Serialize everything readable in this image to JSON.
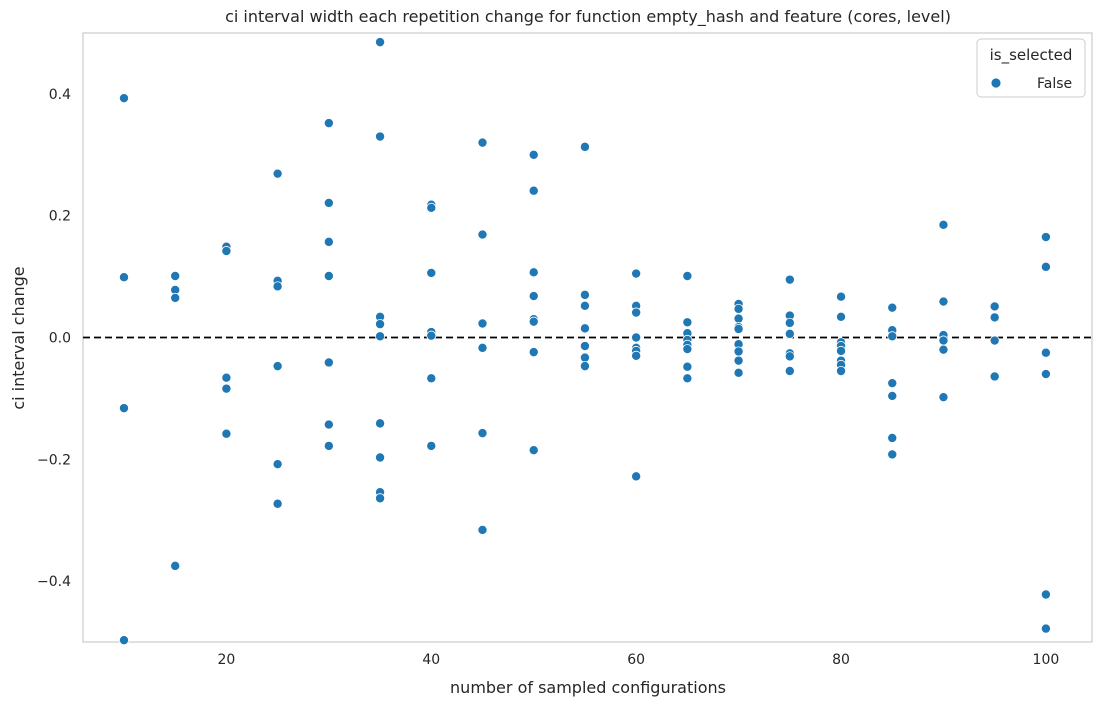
{
  "chart_data": {
    "type": "scatter",
    "title": "ci interval width each repetition change for function empty_hash and feature (cores, level)",
    "xlabel": "number of sampled configurations",
    "ylabel": "ci interval change",
    "xlim": [
      6,
      104.5
    ],
    "ylim": [
      -0.5,
      0.5
    ],
    "x_ticks": [
      20,
      40,
      60,
      80,
      100
    ],
    "y_ticks": [
      -0.4,
      -0.2,
      0.0,
      0.2,
      0.4
    ],
    "x_tick_labels": [
      "20",
      "40",
      "60",
      "80",
      "100"
    ],
    "y_tick_labels": [
      "−0.4",
      "−0.2",
      "0.0",
      "0.2",
      "0.4"
    ],
    "reference_line": {
      "y": 0.0,
      "style": "dashed",
      "color": "#000000"
    },
    "grid": false,
    "legend": {
      "title": "is_selected",
      "placement": "top-right",
      "entries": [
        "False"
      ]
    },
    "series": [
      {
        "name": "False",
        "color": "#1f77b4",
        "points": [
          [
            10,
            0.393
          ],
          [
            10,
            0.099
          ],
          [
            10,
            -0.116
          ],
          [
            10,
            -0.497
          ],
          [
            15,
            0.101
          ],
          [
            15,
            0.078
          ],
          [
            15,
            0.065
          ],
          [
            15,
            -0.375
          ],
          [
            20,
            0.149
          ],
          [
            20,
            0.142
          ],
          [
            20,
            -0.066
          ],
          [
            20,
            -0.084
          ],
          [
            20,
            -0.158
          ],
          [
            25,
            0.269
          ],
          [
            25,
            0.093
          ],
          [
            25,
            0.084
          ],
          [
            25,
            -0.047
          ],
          [
            25,
            -0.208
          ],
          [
            25,
            -0.273
          ],
          [
            30,
            0.352
          ],
          [
            30,
            0.221
          ],
          [
            30,
            0.157
          ],
          [
            30,
            0.101
          ],
          [
            30,
            -0.041
          ],
          [
            30,
            -0.143
          ],
          [
            30,
            -0.178
          ],
          [
            35,
            0.485
          ],
          [
            35,
            0.33
          ],
          [
            35,
            0.034
          ],
          [
            35,
            0.022
          ],
          [
            35,
            0.002
          ],
          [
            35,
            -0.141
          ],
          [
            35,
            -0.197
          ],
          [
            35,
            -0.254
          ],
          [
            35,
            -0.264
          ],
          [
            40,
            0.218
          ],
          [
            40,
            0.213
          ],
          [
            40,
            0.106
          ],
          [
            40,
            0.009
          ],
          [
            40,
            0.003
          ],
          [
            40,
            -0.067
          ],
          [
            40,
            -0.178
          ],
          [
            45,
            0.32
          ],
          [
            45,
            0.169
          ],
          [
            45,
            0.023
          ],
          [
            45,
            -0.017
          ],
          [
            45,
            -0.157
          ],
          [
            45,
            -0.316
          ],
          [
            50,
            0.3
          ],
          [
            50,
            0.241
          ],
          [
            50,
            0.107
          ],
          [
            50,
            0.068
          ],
          [
            50,
            0.03
          ],
          [
            50,
            0.026
          ],
          [
            50,
            -0.024
          ],
          [
            50,
            -0.185
          ],
          [
            55,
            0.313
          ],
          [
            55,
            0.07
          ],
          [
            55,
            0.052
          ],
          [
            55,
            0.015
          ],
          [
            55,
            -0.014
          ],
          [
            55,
            -0.033
          ],
          [
            55,
            -0.047
          ],
          [
            60,
            0.105
          ],
          [
            60,
            0.052
          ],
          [
            60,
            0.041
          ],
          [
            60,
            0.0
          ],
          [
            60,
            -0.017
          ],
          [
            60,
            -0.022
          ],
          [
            60,
            -0.03
          ],
          [
            60,
            -0.228
          ],
          [
            65,
            0.101
          ],
          [
            65,
            0.025
          ],
          [
            65,
            0.007
          ],
          [
            65,
            -0.004
          ],
          [
            65,
            -0.012
          ],
          [
            65,
            -0.019
          ],
          [
            65,
            -0.048
          ],
          [
            65,
            -0.067
          ],
          [
            70,
            0.055
          ],
          [
            70,
            0.047
          ],
          [
            70,
            0.031
          ],
          [
            70,
            0.017
          ],
          [
            70,
            0.014
          ],
          [
            70,
            -0.011
          ],
          [
            70,
            -0.023
          ],
          [
            70,
            -0.038
          ],
          [
            70,
            -0.058
          ],
          [
            75,
            0.095
          ],
          [
            75,
            0.036
          ],
          [
            75,
            0.024
          ],
          [
            75,
            0.006
          ],
          [
            75,
            -0.026
          ],
          [
            75,
            -0.031
          ],
          [
            75,
            -0.055
          ],
          [
            80,
            0.067
          ],
          [
            80,
            0.034
          ],
          [
            80,
            -0.008
          ],
          [
            80,
            -0.014
          ],
          [
            80,
            -0.022
          ],
          [
            80,
            -0.038
          ],
          [
            80,
            -0.045
          ],
          [
            80,
            -0.055
          ],
          [
            85,
            0.049
          ],
          [
            85,
            0.012
          ],
          [
            85,
            0.002
          ],
          [
            85,
            -0.075
          ],
          [
            85,
            -0.096
          ],
          [
            85,
            -0.165
          ],
          [
            85,
            -0.192
          ],
          [
            90,
            0.185
          ],
          [
            90,
            0.059
          ],
          [
            90,
            0.004
          ],
          [
            90,
            -0.005
          ],
          [
            90,
            -0.02
          ],
          [
            90,
            -0.098
          ],
          [
            95,
            0.051
          ],
          [
            95,
            0.033
          ],
          [
            95,
            -0.005
          ],
          [
            95,
            -0.064
          ],
          [
            100,
            0.165
          ],
          [
            100,
            0.116
          ],
          [
            100,
            -0.025
          ],
          [
            100,
            -0.06
          ],
          [
            100,
            -0.422
          ],
          [
            100,
            -0.478
          ]
        ]
      }
    ]
  }
}
